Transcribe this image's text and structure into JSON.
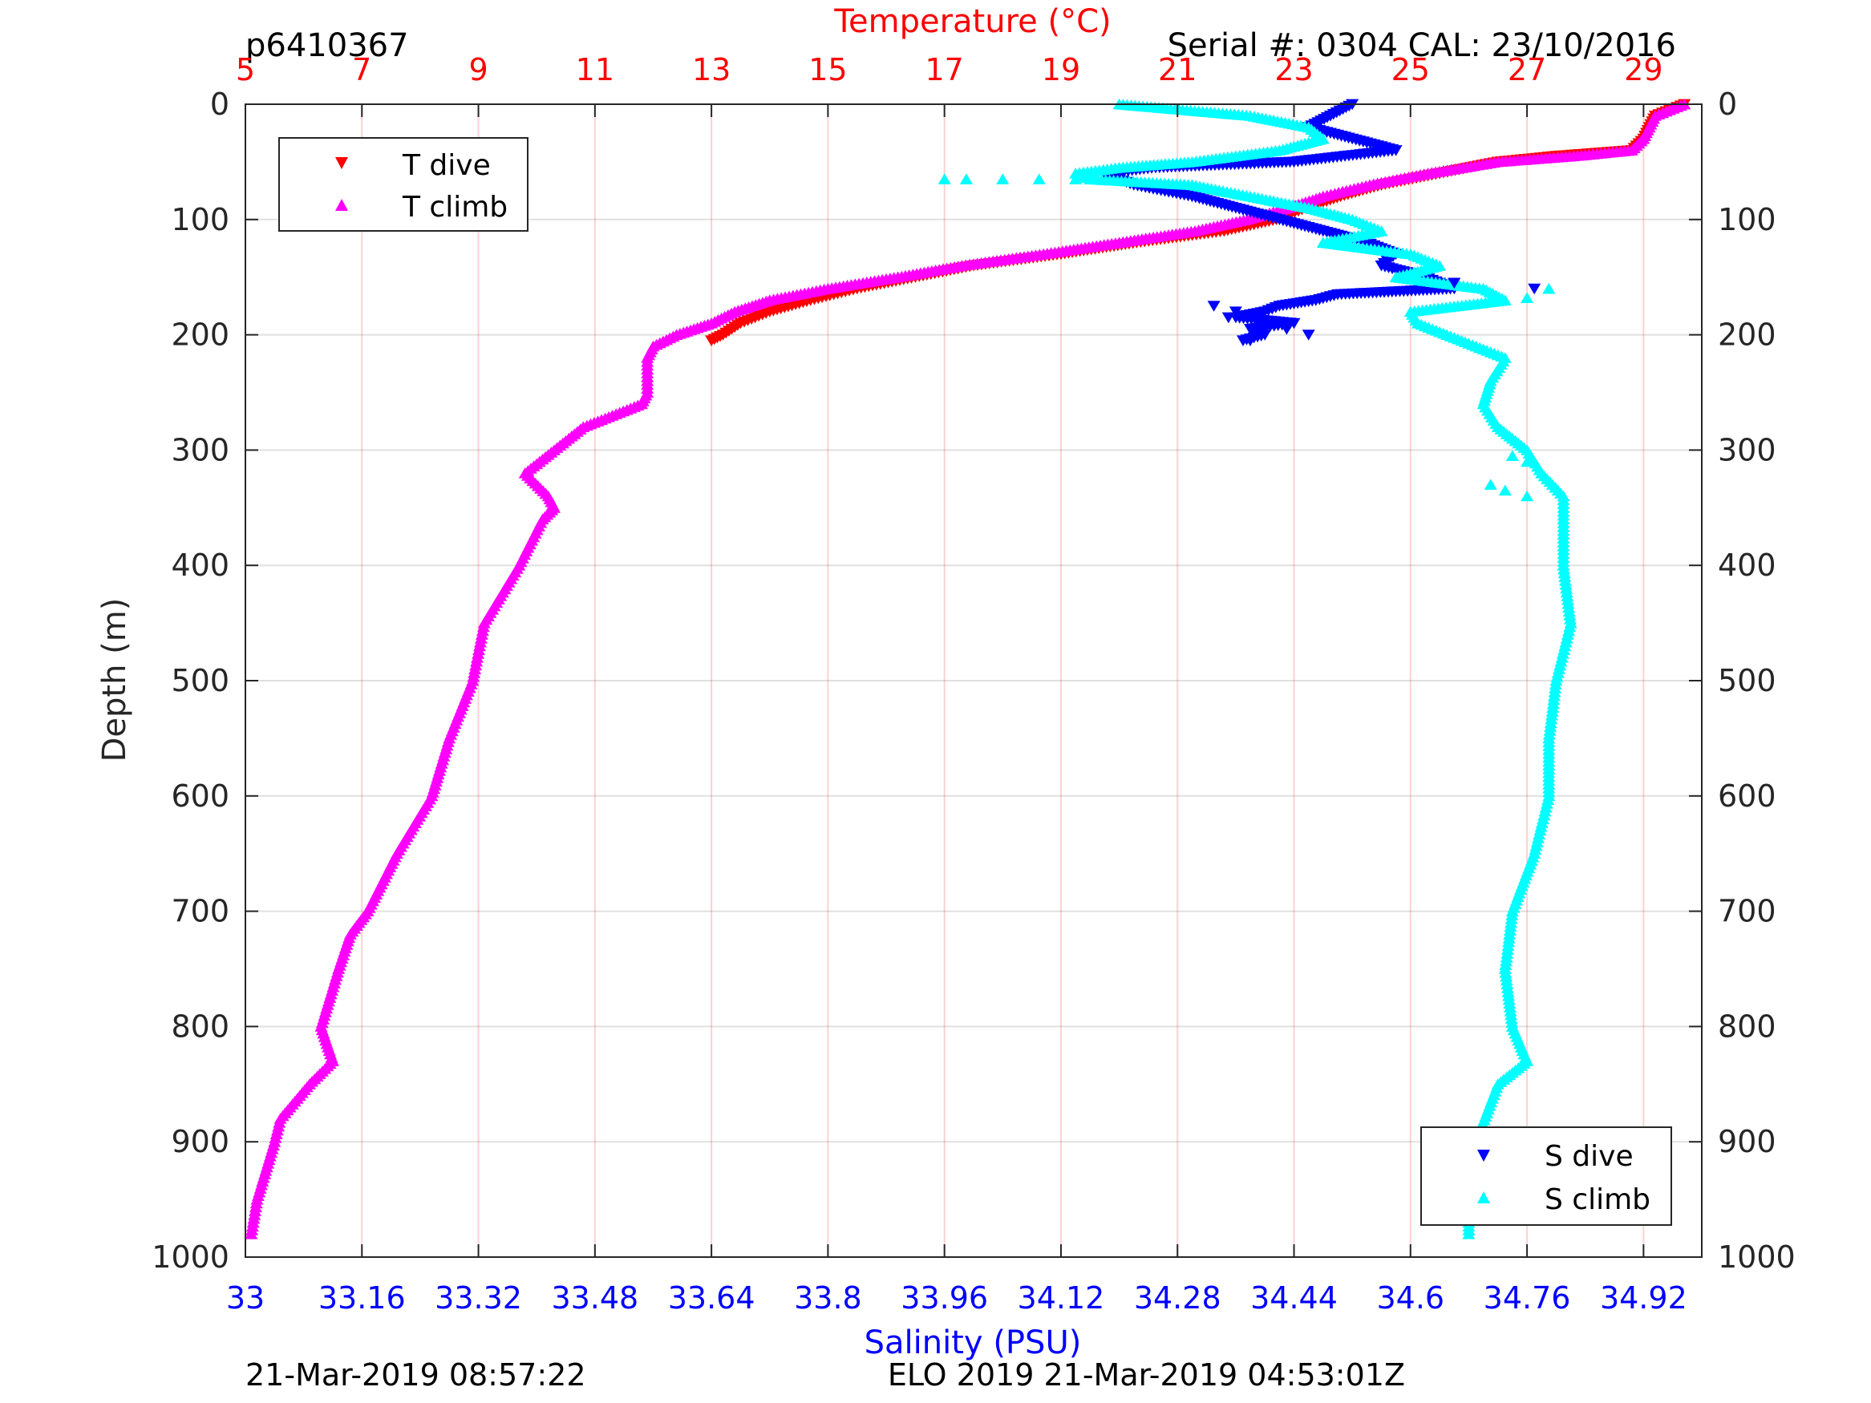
{
  "chart_data": {
    "type": "scatter",
    "header": {
      "glider_id": "p6410367",
      "serial": "Serial #: 0304  CAL: 23/10/2016"
    },
    "footer": {
      "left": "21-Mar-2019 08:57:22",
      "right": "ELO 2019 21-Mar-2019 04:53:01Z"
    },
    "axes": {
      "temperature": {
        "label": "Temperature (°C)",
        "range": [
          5,
          30
        ],
        "ticks": [
          "5",
          "7",
          "9",
          "11",
          "13",
          "15",
          "17",
          "19",
          "21",
          "23",
          "25",
          "27",
          "29"
        ],
        "color": "#ff0000"
      },
      "salinity": {
        "label": "Salinity (PSU)",
        "range": [
          33.0,
          35.0
        ],
        "ticks": [
          "33",
          "33.16",
          "33.32",
          "33.48",
          "33.64",
          "33.8",
          "33.96",
          "34.12",
          "34.28",
          "34.44",
          "34.6",
          "34.76",
          "34.92"
        ],
        "color": "#0000ff"
      },
      "depth": {
        "label": "Depth (m)",
        "range": [
          0,
          1000
        ],
        "ticks": [
          "0",
          "100",
          "200",
          "300",
          "400",
          "500",
          "600",
          "700",
          "800",
          "900",
          "1000"
        ]
      }
    },
    "legend_temperature": {
      "position": "top-left",
      "entries": [
        "T dive",
        "T climb"
      ]
    },
    "legend_salinity": {
      "position": "bottom-right",
      "entries": [
        "S dive",
        "S climb"
      ]
    },
    "series": [
      {
        "name": "T dive",
        "variable": "temperature",
        "marker": "triangle-down",
        "color": "#ff0000",
        "depth": [
          0,
          10,
          20,
          30,
          40,
          45,
          50,
          60,
          70,
          80,
          90,
          100,
          110,
          120,
          130,
          140,
          150,
          160,
          170,
          180,
          190,
          200,
          205
        ],
        "values": [
          29.7,
          29.2,
          29.1,
          29.0,
          28.8,
          27.5,
          26.5,
          25.5,
          24.5,
          23.8,
          23.2,
          22.7,
          21.8,
          20.3,
          19.0,
          17.5,
          16.5,
          15.5,
          14.7,
          14.0,
          13.5,
          13.2,
          13.0
        ]
      },
      {
        "name": "T climb",
        "variable": "temperature",
        "marker": "triangle-up",
        "color": "#ff00ff",
        "depth": [
          0,
          10,
          20,
          30,
          40,
          45,
          50,
          60,
          70,
          80,
          90,
          100,
          110,
          120,
          130,
          140,
          150,
          160,
          170,
          180,
          190,
          200,
          210,
          220,
          230,
          240,
          250,
          260,
          270,
          280,
          300,
          320,
          340,
          350,
          360,
          400,
          450,
          500,
          550,
          600,
          650,
          700,
          720,
          750,
          800,
          830,
          850,
          880,
          900,
          950,
          980
        ],
        "values": [
          29.7,
          29.2,
          29.1,
          29.0,
          28.8,
          27.8,
          26.5,
          25.3,
          24.3,
          23.5,
          22.9,
          22.2,
          21.3,
          20.0,
          18.7,
          17.3,
          16.2,
          15.0,
          14.0,
          13.4,
          13.0,
          12.4,
          12.0,
          11.9,
          11.9,
          11.9,
          11.9,
          11.8,
          11.3,
          10.8,
          10.3,
          9.8,
          10.2,
          10.3,
          10.1,
          9.7,
          9.1,
          8.9,
          8.5,
          8.2,
          7.6,
          7.1,
          6.8,
          6.6,
          6.3,
          6.5,
          6.1,
          5.6,
          5.5,
          5.2,
          5.1
        ]
      },
      {
        "name": "S dive",
        "variable": "salinity",
        "marker": "triangle-down",
        "color": "#0000ff",
        "depth": [
          0,
          10,
          20,
          30,
          40,
          50,
          55,
          60,
          70,
          80,
          90,
          100,
          110,
          120,
          130,
          140,
          150,
          160,
          165,
          170,
          175,
          180,
          185,
          190,
          195,
          200,
          205
        ],
        "values": [
          34.52,
          34.49,
          34.46,
          34.52,
          34.58,
          34.44,
          34.25,
          34.18,
          34.22,
          34.3,
          34.36,
          34.42,
          34.48,
          34.54,
          34.58,
          34.56,
          34.62,
          34.66,
          34.5,
          34.47,
          34.42,
          34.4,
          34.36,
          34.44,
          34.38,
          34.4,
          34.37
        ]
      },
      {
        "name": "S climb",
        "variable": "salinity",
        "marker": "triangle-up",
        "color": "#00ffff",
        "depth": [
          0,
          10,
          20,
          30,
          40,
          50,
          55,
          60,
          65,
          70,
          80,
          90,
          100,
          110,
          120,
          130,
          140,
          150,
          160,
          170,
          180,
          190,
          200,
          210,
          220,
          240,
          260,
          280,
          300,
          320,
          340,
          350,
          400,
          450,
          500,
          550,
          600,
          650,
          700,
          750,
          800,
          830,
          850,
          900,
          950,
          980
        ],
        "values": [
          34.2,
          34.38,
          34.46,
          34.48,
          34.42,
          34.3,
          34.2,
          34.14,
          34.16,
          34.3,
          34.38,
          34.46,
          34.52,
          34.56,
          34.48,
          34.6,
          34.64,
          34.58,
          34.7,
          34.73,
          34.6,
          34.61,
          34.65,
          34.69,
          34.73,
          34.71,
          34.7,
          34.72,
          34.76,
          34.78,
          34.81,
          34.81,
          34.81,
          34.82,
          34.8,
          34.79,
          34.79,
          34.77,
          34.74,
          34.73,
          34.74,
          34.76,
          34.72,
          34.69,
          34.68,
          34.68
        ]
      },
      {
        "name": "S climb outliers",
        "variable": "salinity",
        "marker": "triangle-up",
        "color": "#00ffff",
        "depth": [
          65,
          65,
          65,
          65,
          65,
          168,
          160,
          305,
          310,
          330,
          335,
          340
        ],
        "values": [
          33.96,
          33.99,
          34.04,
          34.09,
          34.14,
          34.76,
          34.79,
          34.74,
          34.76,
          34.71,
          34.73,
          34.76
        ]
      },
      {
        "name": "S dive outliers",
        "variable": "salinity",
        "marker": "triangle-down",
        "color": "#0000ff",
        "depth": [
          155,
          160,
          175,
          180,
          185,
          190,
          195,
          200,
          205
        ],
        "values": [
          34.66,
          34.77,
          34.33,
          34.36,
          34.35,
          34.4,
          34.43,
          34.46,
          34.38
        ]
      }
    ]
  }
}
